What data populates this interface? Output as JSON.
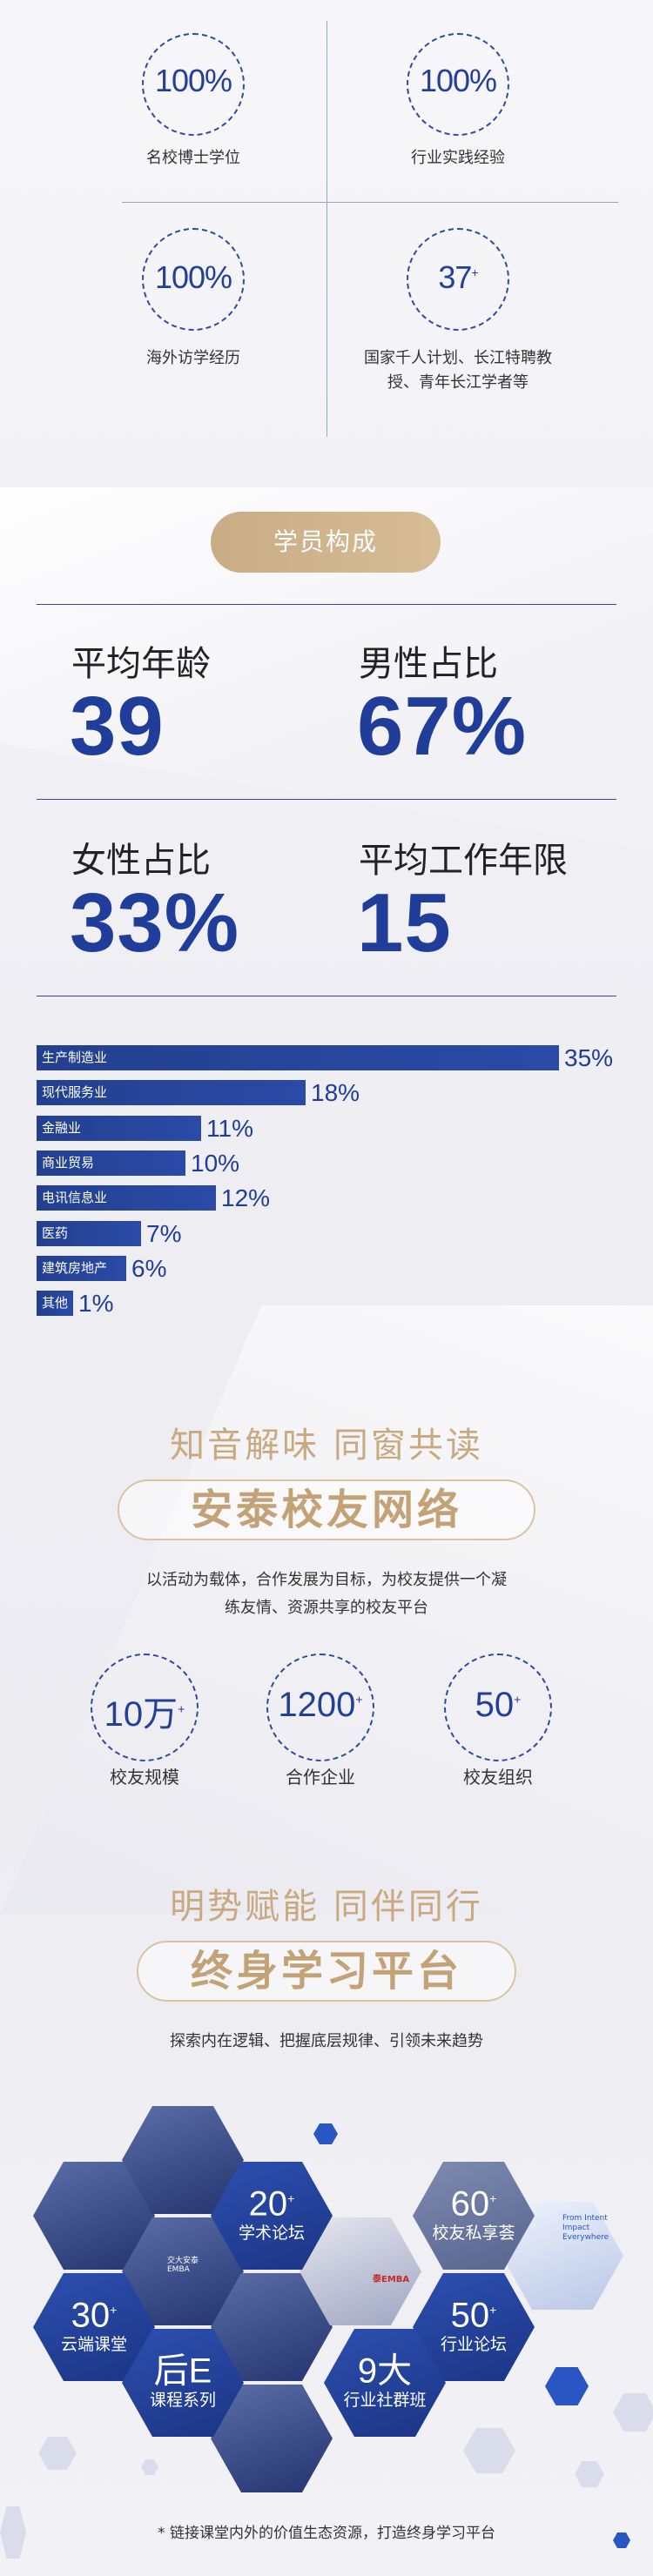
{
  "stats": [
    {
      "number": "100%",
      "sup": "",
      "label": "名校博士学位"
    },
    {
      "number": "100%",
      "sup": "",
      "label": "行业实践经验"
    },
    {
      "number": "100%",
      "sup": "",
      "label": "海外访学经历"
    },
    {
      "number": "37",
      "sup": "+",
      "label": "国家千人计划、长江特聘教授、青年长江学者等"
    }
  ],
  "student_section": {
    "title": "学员构成"
  },
  "demographics": [
    {
      "label": "平均年龄",
      "value": "39"
    },
    {
      "label": "男性占比",
      "value": "67%"
    },
    {
      "label": "女性占比",
      "value": "33%"
    },
    {
      "label": "平均工作年限",
      "value": "15"
    }
  ],
  "chart_data": {
    "type": "bar",
    "orientation": "horizontal",
    "categories": [
      "生产制造业",
      "现代服务业",
      "金融业",
      "商业贸易",
      "电讯信息业",
      "医药",
      "建筑房地产",
      "其他"
    ],
    "values": [
      35,
      18,
      11,
      10,
      12,
      7,
      6,
      1
    ],
    "value_labels": [
      "35%",
      "18%",
      "11%",
      "10%",
      "12%",
      "7%",
      "6%",
      "1%"
    ],
    "unit": "%",
    "xlim": [
      0,
      35
    ]
  },
  "alumni": {
    "subtitle": "知音解味 同窗共读",
    "title": "安泰校友网络",
    "description_line1": "以活动为载体，合作发展为目标，为校友提供一个凝",
    "description_line2": "练友情、资源共享的校友平台",
    "stats": [
      {
        "number": "10万",
        "sup": "+",
        "label": "校友规模"
      },
      {
        "number": "1200",
        "sup": "+",
        "label": "合作企业"
      },
      {
        "number": "50",
        "sup": "+",
        "label": "校友组织"
      }
    ]
  },
  "lifelong": {
    "subtitle": "明势赋能 同伴同行",
    "title": "终身学习平台",
    "description": "探索内在逻辑、把握底层规律、引领未来趋势",
    "hexes": [
      {
        "number": "20",
        "sup": "+",
        "label": "学术论坛"
      },
      {
        "number": "60",
        "sup": "+",
        "label": "校友私享荟"
      },
      {
        "number": "30",
        "sup": "+",
        "label": "云端课堂"
      },
      {
        "number": "50",
        "sup": "+",
        "label": "行业论坛"
      },
      {
        "number": "后E",
        "sup": "",
        "label": "课程系列"
      },
      {
        "number": "9大",
        "sup": "",
        "label": "行业社群班"
      }
    ],
    "footnote": "* 链接课堂内外的价值生态资源，打造终身学习平台",
    "photo_texts": [
      "泰EMBA",
      "交大安泰EMBA",
      "From Intent Impact Everywhere"
    ]
  },
  "colors": {
    "accent": "#1f3d99",
    "gold": "#c9ac86",
    "text": "#333333"
  }
}
